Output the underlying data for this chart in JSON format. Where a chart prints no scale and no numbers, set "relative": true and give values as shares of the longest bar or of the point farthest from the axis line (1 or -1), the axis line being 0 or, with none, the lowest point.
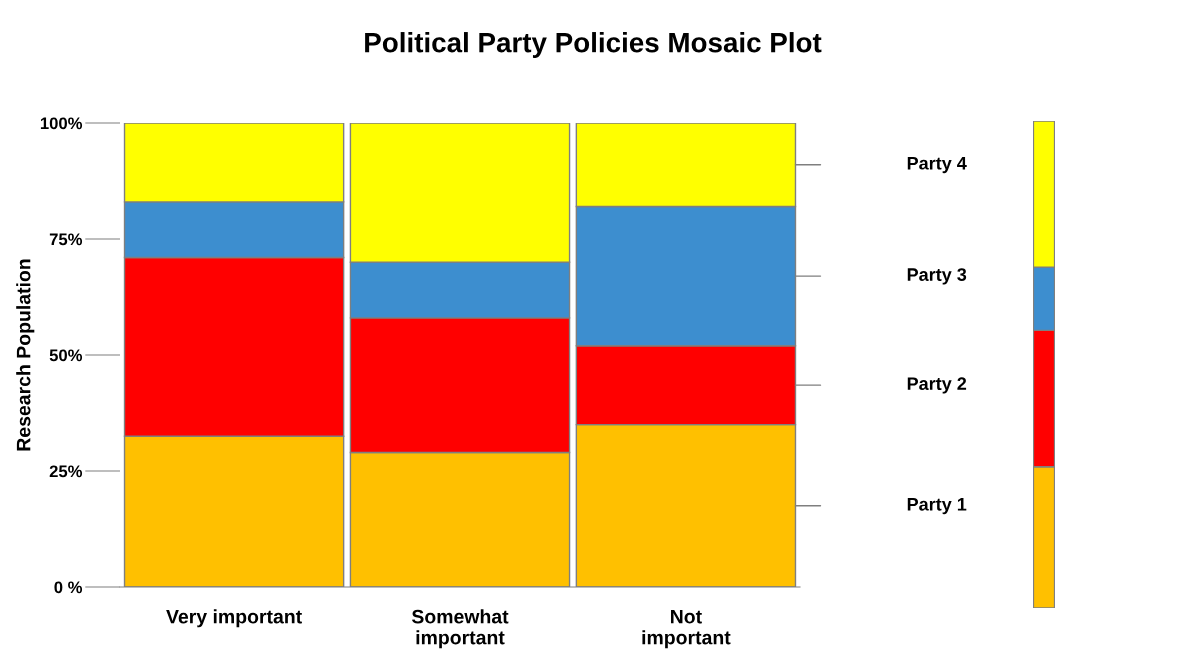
{
  "chart_data": [
    {
      "type": "bar",
      "title": "Political Party Policies Mosaic Plot",
      "ylabel": "Research Population",
      "stacked": true,
      "categories": [
        "Very important",
        "Somewhat\nimportant",
        "Not\nimportant"
      ],
      "ylim": [
        0,
        100
      ],
      "yticks": [
        {
          "value": 0,
          "label": "0 %"
        },
        {
          "value": 25,
          "label": "25%"
        },
        {
          "value": 50,
          "label": "50%"
        },
        {
          "value": 75,
          "label": "75%"
        },
        {
          "value": 100,
          "label": "100%"
        }
      ],
      "grid": false,
      "legend": false,
      "series": [
        {
          "name": "Party 1",
          "color": "#ffc000",
          "values": [
            32.5,
            29,
            35
          ]
        },
        {
          "name": "Party 2",
          "color": "#ff0000",
          "values": [
            38.5,
            29,
            17
          ]
        },
        {
          "name": "Party 3",
          "color": "#3d8ecf",
          "values": [
            12,
            12,
            30
          ]
        },
        {
          "name": "Party 4",
          "color": "#ffff00",
          "values": [
            17,
            30,
            18
          ]
        }
      ]
    },
    {
      "type": "bar",
      "stacked": true,
      "relative": true,
      "categories": [
        null
      ],
      "series": [
        {
          "color": "#ffc000",
          "values": [
            0.29
          ]
        },
        {
          "color": "#ff0000",
          "values": [
            0.28
          ]
        },
        {
          "color": "#3d8ecf",
          "values": [
            0.13
          ]
        },
        {
          "color": "#ffff00",
          "values": [
            0.3
          ]
        }
      ]
    }
  ]
}
